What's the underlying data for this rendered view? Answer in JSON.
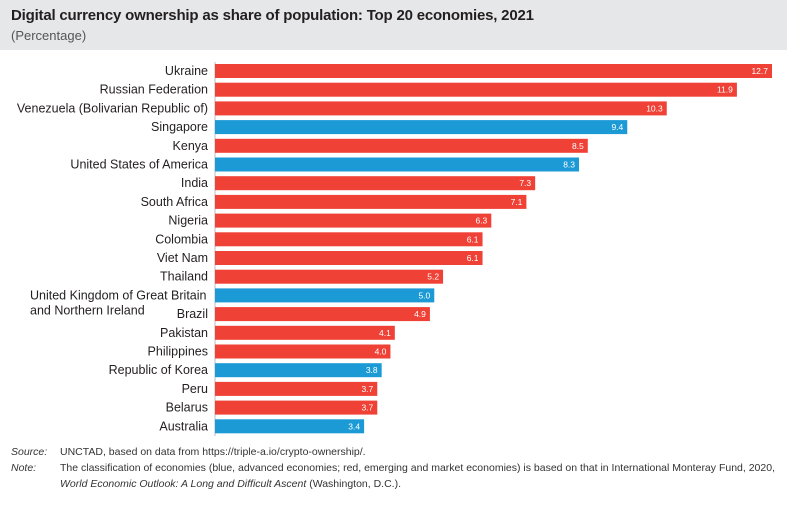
{
  "title": "Digital currency ownership as share of population: Top 20 economies, 2021",
  "subtitle": "(Percentage)",
  "colors": {
    "emerging": "#ef4136",
    "advanced": "#1c9ad6",
    "header_bg": "#e6e7e8"
  },
  "chart_data": {
    "type": "bar",
    "orientation": "horizontal",
    "title": "Digital currency ownership as share of population: Top 20 economies, 2021",
    "subtitle": "(Percentage)",
    "xlim": [
      0,
      12.7
    ],
    "grid": false,
    "categories": [
      "Ukraine",
      "Russian Federation",
      "Venezuela (Bolivarian Republic of)",
      "Singapore",
      "Kenya",
      "United States of America",
      "India",
      "South Africa",
      "Nigeria",
      "Colombia",
      "Viet Nam",
      "Thailand",
      "United Kingdom of Great Britain and Northern Ireland",
      "Brazil",
      "Pakistan",
      "Philippines",
      "Republic of Korea",
      "Peru",
      "Belarus",
      "Australia"
    ],
    "values": [
      12.7,
      11.9,
      10.3,
      9.4,
      8.5,
      8.3,
      7.3,
      7.1,
      6.3,
      6.1,
      6.1,
      5.2,
      5.0,
      4.9,
      4.1,
      4.0,
      3.8,
      3.7,
      3.7,
      3.4
    ],
    "value_labels": [
      "12.7",
      "11.9",
      "10.3",
      "9.4",
      "8.5",
      "8.3",
      "7.3",
      "7.1",
      "6.3",
      "6.1",
      "6.1",
      "5.2",
      "5.0",
      "4.9",
      "4.1",
      "4.0",
      "3.8",
      "3.7",
      "3.7",
      "3.4"
    ],
    "group": [
      "emerging",
      "emerging",
      "emerging",
      "advanced",
      "emerging",
      "advanced",
      "emerging",
      "emerging",
      "emerging",
      "emerging",
      "emerging",
      "emerging",
      "advanced",
      "emerging",
      "emerging",
      "emerging",
      "advanced",
      "emerging",
      "emerging",
      "advanced"
    ]
  },
  "footer": {
    "source_key": "Source:",
    "source_text": "UNCTAD, based on data from https://triple-a.io/crypto-ownership/.",
    "note_key": "Note:",
    "note_line1": "The classification of economies (blue, advanced economies; red, emerging and market economies) is based on that in International Monteray Fund, 2020,",
    "note_italic": "World Economic Outlook: A Long and Difficult Ascent",
    "note_rest": " (Washington, D.C.)."
  }
}
